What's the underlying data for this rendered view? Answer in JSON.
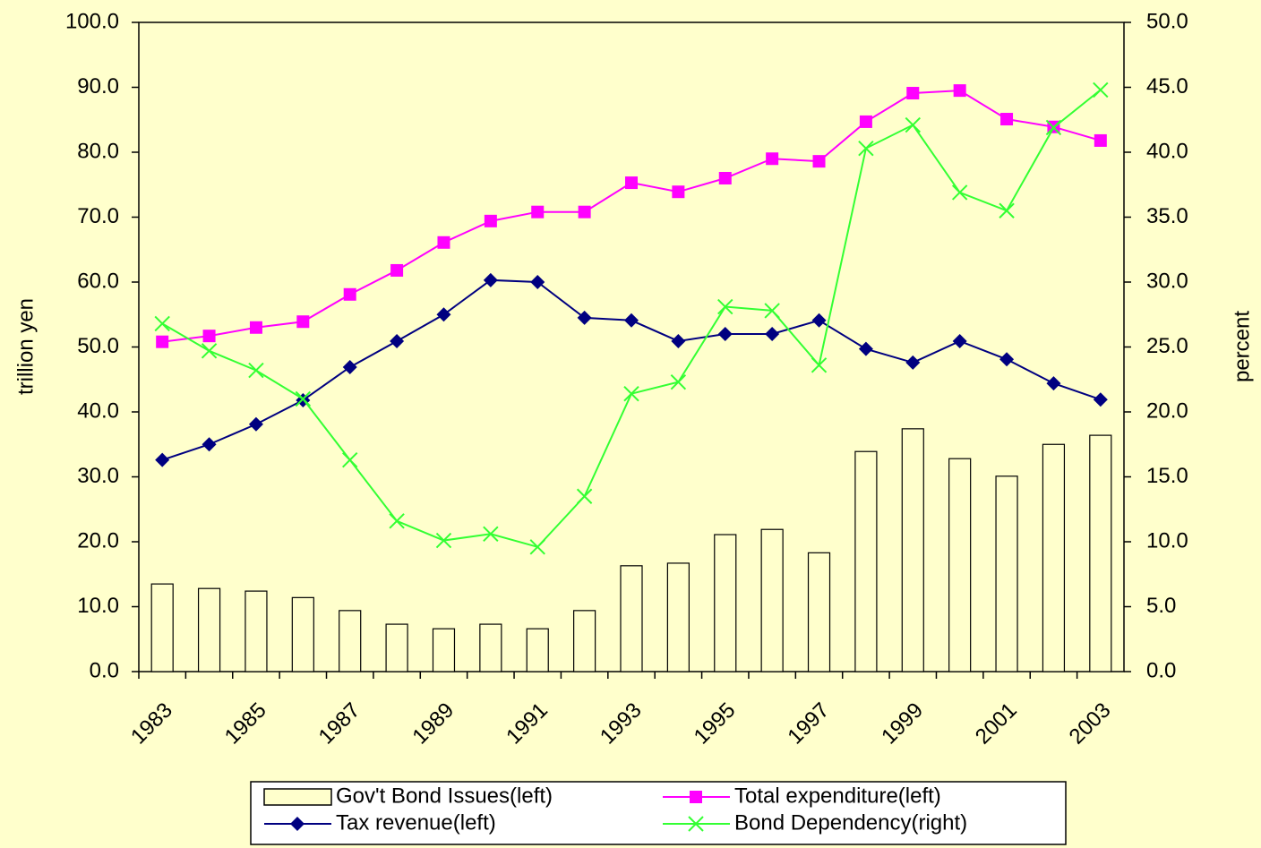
{
  "chart_data": {
    "type": "bar-line",
    "categories": [
      "1983",
      null,
      "1985",
      null,
      "1987",
      null,
      "1989",
      null,
      "1991",
      null,
      "1993",
      null,
      "1995",
      null,
      "1997",
      null,
      "1999",
      null,
      "2001",
      null,
      "2003"
    ],
    "series": [
      {
        "name": "Gov't Bond Issues(left)",
        "type": "bar",
        "color": "#ffffcc",
        "axis": "y",
        "values": [
          13.5,
          12.8,
          12.4,
          11.4,
          9.4,
          7.3,
          6.6,
          7.3,
          6.6,
          9.4,
          16.3,
          16.7,
          21.1,
          21.9,
          18.3,
          33.9,
          37.4,
          32.8,
          30.1,
          35.0,
          36.4
        ]
      },
      {
        "name": "Total expenditure(left)",
        "type": "line",
        "marker": "square",
        "color": "#ff00ff",
        "axis": "y",
        "values": [
          50.8,
          51.7,
          53.0,
          53.9,
          58.1,
          61.8,
          66.1,
          69.4,
          70.8,
          70.8,
          75.3,
          73.9,
          76.0,
          79.0,
          78.6,
          84.7,
          89.1,
          89.5,
          85.1,
          83.9,
          81.8
        ]
      },
      {
        "name": "Tax revenue(left)",
        "type": "line",
        "marker": "diamond",
        "color": "#000080",
        "axis": "y",
        "values": [
          32.6,
          35.0,
          38.1,
          41.8,
          46.9,
          50.9,
          55.0,
          60.3,
          60.0,
          54.5,
          54.1,
          50.9,
          52.0,
          52.0,
          54.1,
          49.7,
          47.6,
          50.9,
          48.1,
          44.4,
          41.9
        ]
      },
      {
        "name": "Bond Dependency(right)",
        "type": "line",
        "marker": "x",
        "color": "#33ff33",
        "axis": "y2",
        "values": [
          26.8,
          24.7,
          23.2,
          21.0,
          16.3,
          11.6,
          10.1,
          10.6,
          9.6,
          13.5,
          21.4,
          22.3,
          28.1,
          27.8,
          23.6,
          40.3,
          42.1,
          36.9,
          35.5,
          41.9,
          44.8
        ]
      }
    ],
    "ylabel": "trillion yen",
    "y2label": "percent",
    "ylim": [
      0,
      100
    ],
    "yticks": [
      {
        "value": 0,
        "label": "0.0"
      },
      {
        "value": 10,
        "label": "10.0"
      },
      {
        "value": 20,
        "label": "20.0"
      },
      {
        "value": 30,
        "label": "30.0"
      },
      {
        "value": 40,
        "label": "40.0"
      },
      {
        "value": 50,
        "label": "50.0"
      },
      {
        "value": 60,
        "label": "60.0"
      },
      {
        "value": 70,
        "label": "70.0"
      },
      {
        "value": 80,
        "label": "80.0"
      },
      {
        "value": 90,
        "label": "90.0"
      },
      {
        "value": 100,
        "label": "100.0"
      }
    ],
    "y2lim": [
      0,
      50
    ],
    "y2ticks": [
      {
        "value": 0,
        "label": "0.0"
      },
      {
        "value": 5,
        "label": "5.0"
      },
      {
        "value": 10,
        "label": "10.0"
      },
      {
        "value": 15,
        "label": "15.0"
      },
      {
        "value": 20,
        "label": "20.0"
      },
      {
        "value": 25,
        "label": "25.0"
      },
      {
        "value": 30,
        "label": "30.0"
      },
      {
        "value": 35,
        "label": "35.0"
      },
      {
        "value": 40,
        "label": "40.0"
      },
      {
        "value": 45,
        "label": "45.0"
      },
      {
        "value": 50,
        "label": "50.0"
      }
    ],
    "legend": "bottom"
  }
}
